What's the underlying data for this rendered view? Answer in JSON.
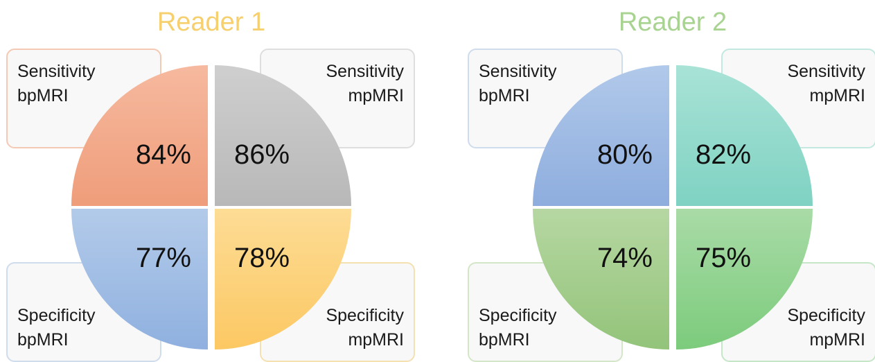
{
  "readers": [
    {
      "title": "Reader 1",
      "title_color": "#f6cf6e",
      "box_border_colors": {
        "tl": "#f3c9b3",
        "tr": "#dedede",
        "bl": "#cfdcec",
        "br": "#f5e0b0"
      },
      "quadrants": [
        {
          "pos": "tl",
          "label_line1": "Sensitivity",
          "label_line2": "bpMRI",
          "value": "84%",
          "color_top": "#f6b99f",
          "color_bottom": "#ef9d7a"
        },
        {
          "pos": "tr",
          "label_line1": "Sensitivity",
          "label_line2": "mpMRI",
          "value": "86%",
          "color_top": "#cfcfcf",
          "color_bottom": "#b8b8b8"
        },
        {
          "pos": "bl",
          "label_line1": "Specificity",
          "label_line2": "bpMRI",
          "value": "77%",
          "color_top": "#b3cbea",
          "color_bottom": "#8fb0df"
        },
        {
          "pos": "br",
          "label_line1": "Specificity",
          "label_line2": "mpMRI",
          "value": "78%",
          "color_top": "#fddc95",
          "color_bottom": "#fcc863"
        }
      ]
    },
    {
      "title": "Reader 2",
      "title_color": "#a8d391",
      "box_border_colors": {
        "tl": "#cfdcec",
        "tr": "#c3e8e0",
        "bl": "#d4e6c8",
        "br": "#c6e6c8"
      },
      "quadrants": [
        {
          "pos": "tl",
          "label_line1": "Sensitivity",
          "label_line2": "bpMRI",
          "value": "80%",
          "color_top": "#b1c9ea",
          "color_bottom": "#8eadde"
        },
        {
          "pos": "tr",
          "label_line1": "Sensitivity",
          "label_line2": "mpMRI",
          "value": "82%",
          "color_top": "#a9e3d7",
          "color_bottom": "#7fd2c2"
        },
        {
          "pos": "bl",
          "label_line1": "Specificity",
          "label_line2": "bpMRI",
          "value": "74%",
          "color_top": "#b6d7a2",
          "color_bottom": "#93c47a"
        },
        {
          "pos": "br",
          "label_line1": "Specificity",
          "label_line2": "mpMRI",
          "value": "75%",
          "color_top": "#a9dba7",
          "color_bottom": "#7ccb7c"
        }
      ]
    }
  ]
}
